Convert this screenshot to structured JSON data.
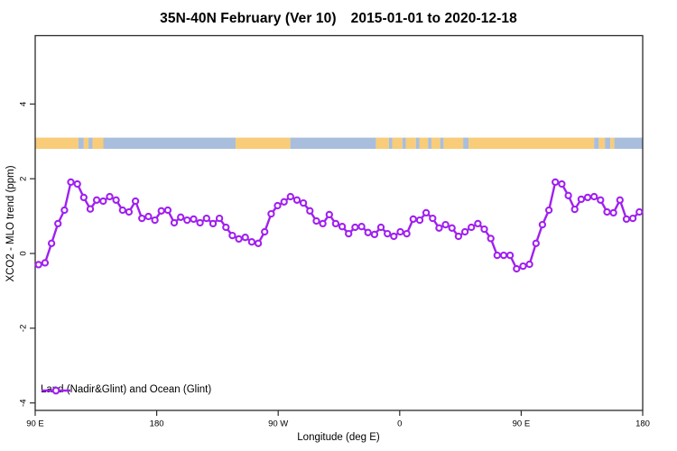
{
  "colors": {
    "line": "#A020F0",
    "marker_fill": "#FFFFFF",
    "land": "#F8CC78",
    "ocean": "#A8BEDC",
    "axis": "#2B2B2B",
    "text": "#000000"
  },
  "chart_data": {
    "type": "line",
    "title_left": "35N-40N February (Ver 10)",
    "title_right": "2015-01-01 to 2020-12-18",
    "xlabel": "Longitude (deg E)",
    "ylabel": "XCO2 - MLO trend (ppm)",
    "x_ticks": {
      "positions": [
        90,
        180,
        270,
        360,
        450,
        540
      ],
      "labels": [
        "90 E",
        "180",
        "90 W",
        "0",
        "90 E",
        "180"
      ]
    },
    "y_ticks": [
      4,
      2,
      0,
      -2,
      -4
    ],
    "xlim": [
      90,
      540
    ],
    "ylim": [
      -4.2,
      5.83
    ],
    "x_axis_note": "longitude wraps eastward from 90E around the globe to 180",
    "grid": false,
    "legend": [
      "Land (Nadir&Glint) and Ocean (Glint)"
    ],
    "legend_position": "bottom-left",
    "series": [
      {
        "name": "Land (Nadir&Glint) and Ocean (Glint)",
        "marker": "open-circle",
        "x_start": 92.5,
        "x_step": 4.785,
        "values": [
          -0.3,
          -0.25,
          0.27,
          0.8,
          1.16,
          1.91,
          1.86,
          1.5,
          1.19,
          1.43,
          1.4,
          1.52,
          1.43,
          1.16,
          1.11,
          1.4,
          0.94,
          0.99,
          0.89,
          1.14,
          1.16,
          0.82,
          0.97,
          0.89,
          0.92,
          0.82,
          0.94,
          0.8,
          0.94,
          0.7,
          0.48,
          0.39,
          0.43,
          0.31,
          0.27,
          0.58,
          1.06,
          1.28,
          1.38,
          1.52,
          1.43,
          1.35,
          1.14,
          0.87,
          0.8,
          1.04,
          0.8,
          0.72,
          0.53,
          0.7,
          0.72,
          0.56,
          0.51,
          0.7,
          0.53,
          0.46,
          0.58,
          0.53,
          0.92,
          0.89,
          1.09,
          0.94,
          0.68,
          0.77,
          0.68,
          0.46,
          0.58,
          0.7,
          0.8,
          0.65,
          0.4,
          -0.05,
          -0.05,
          -0.05,
          -0.41,
          -0.34,
          -0.29,
          0.27,
          0.77,
          1.16,
          1.91,
          1.86,
          1.55,
          1.18,
          1.45,
          1.5,
          1.52,
          1.43,
          1.11,
          1.09,
          1.43,
          0.92,
          0.94,
          1.11
        ]
      }
    ],
    "band": {
      "description": "land/ocean strip along longitude",
      "y_range": [
        2.8,
        3.1
      ],
      "segments": [
        {
          "from": 90,
          "to": 122,
          "type": "land"
        },
        {
          "from": 122,
          "to": 126,
          "type": "ocean"
        },
        {
          "from": 126,
          "to": 129.5,
          "type": "land"
        },
        {
          "from": 129.5,
          "to": 132.5,
          "type": "ocean"
        },
        {
          "from": 132.5,
          "to": 140.5,
          "type": "land"
        },
        {
          "from": 140.5,
          "to": 238.5,
          "type": "ocean"
        },
        {
          "from": 238.5,
          "to": 279,
          "type": "land"
        },
        {
          "from": 279,
          "to": 342.5,
          "type": "ocean"
        },
        {
          "from": 342.5,
          "to": 352,
          "type": "land"
        },
        {
          "from": 352,
          "to": 354.5,
          "type": "ocean"
        },
        {
          "from": 354.5,
          "to": 362,
          "type": "land"
        },
        {
          "from": 362,
          "to": 364.5,
          "type": "ocean"
        },
        {
          "from": 364.5,
          "to": 372,
          "type": "land"
        },
        {
          "from": 372,
          "to": 374.5,
          "type": "ocean"
        },
        {
          "from": 374.5,
          "to": 381,
          "type": "land"
        },
        {
          "from": 381,
          "to": 383.5,
          "type": "ocean"
        },
        {
          "from": 383.5,
          "to": 390,
          "type": "land"
        },
        {
          "from": 390,
          "to": 392.5,
          "type": "ocean"
        },
        {
          "from": 392.5,
          "to": 407,
          "type": "land"
        },
        {
          "from": 407,
          "to": 411,
          "type": "ocean"
        },
        {
          "from": 411,
          "to": 504,
          "type": "land"
        },
        {
          "from": 504,
          "to": 507.5,
          "type": "ocean"
        },
        {
          "from": 507.5,
          "to": 512,
          "type": "land"
        },
        {
          "from": 512,
          "to": 516,
          "type": "ocean"
        },
        {
          "from": 516,
          "to": 519,
          "type": "land"
        },
        {
          "from": 519,
          "to": 540,
          "type": "ocean"
        }
      ]
    }
  }
}
